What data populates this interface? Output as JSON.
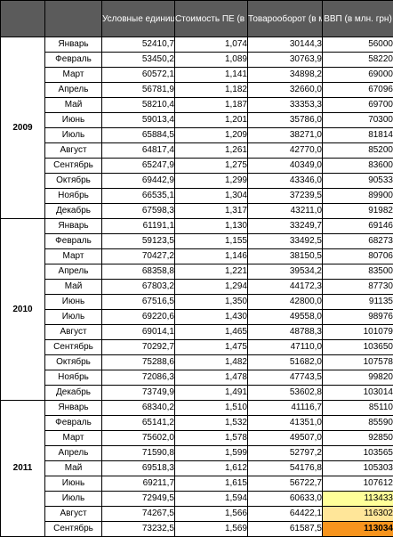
{
  "headers": [
    "",
    "",
    "Условные единицы (ПЕ)",
    "Стоимость ПЕ (в млн. грн)",
    "Товарооборот (в млн. грн)",
    "ВВП (в млн. грн)"
  ],
  "years": [
    {
      "year": "2009",
      "rows": [
        {
          "month": "Январь",
          "units": "52410,7",
          "cost": "1,074",
          "turnover": "30144,3",
          "gdp": "56000"
        },
        {
          "month": "Февраль",
          "units": "53450,2",
          "cost": "1,089",
          "turnover": "30763,9",
          "gdp": "58220"
        },
        {
          "month": "Март",
          "units": "60572,1",
          "cost": "1,141",
          "turnover": "34898,2",
          "gdp": "69000"
        },
        {
          "month": "Апрель",
          "units": "56781,9",
          "cost": "1,182",
          "turnover": "32660,0",
          "gdp": "67096"
        },
        {
          "month": "Май",
          "units": "58210,4",
          "cost": "1,187",
          "turnover": "33353,3",
          "gdp": "69700"
        },
        {
          "month": "Июнь",
          "units": "59013,4",
          "cost": "1,201",
          "turnover": "35786,0",
          "gdp": "70300"
        },
        {
          "month": "Июль",
          "units": "65884,5",
          "cost": "1,209",
          "turnover": "38271,0",
          "gdp": "81814"
        },
        {
          "month": "Август",
          "units": "64817,4",
          "cost": "1,261",
          "turnover": "42770,0",
          "gdp": "85200"
        },
        {
          "month": "Сентябрь",
          "units": "65247,9",
          "cost": "1,275",
          "turnover": "40349,0",
          "gdp": "83600"
        },
        {
          "month": "Октябрь",
          "units": "69442,9",
          "cost": "1,299",
          "turnover": "43346,0",
          "gdp": "90533"
        },
        {
          "month": "Ноябрь",
          "units": "66535,1",
          "cost": "1,304",
          "turnover": "37239,5",
          "gdp": "89900"
        },
        {
          "month": "Декабрь",
          "units": "67598,3",
          "cost": "1,317",
          "turnover": "43211,0",
          "gdp": "91982"
        }
      ]
    },
    {
      "year": "2010",
      "rows": [
        {
          "month": "Январь",
          "units": "61191,1",
          "cost": "1,130",
          "turnover": "33249,7",
          "gdp": "69146"
        },
        {
          "month": "Февраль",
          "units": "59123,5",
          "cost": "1,155",
          "turnover": "33492,5",
          "gdp": "68273"
        },
        {
          "month": "Март",
          "units": "70427,2",
          "cost": "1,146",
          "turnover": "38150,5",
          "gdp": "80706"
        },
        {
          "month": "Апрель",
          "units": "68358,8",
          "cost": "1,221",
          "turnover": "39534,2",
          "gdp": "83500"
        },
        {
          "month": "Май",
          "units": "67803,2",
          "cost": "1,294",
          "turnover": "44172,3",
          "gdp": "87730"
        },
        {
          "month": "Июнь",
          "units": "67516,5",
          "cost": "1,350",
          "turnover": "42800,0",
          "gdp": "91135"
        },
        {
          "month": "Июль",
          "units": "69220,6",
          "cost": "1,430",
          "turnover": "49558,0",
          "gdp": "98976"
        },
        {
          "month": "Август",
          "units": "69014,1",
          "cost": "1,465",
          "turnover": "48788,3",
          "gdp": "101079"
        },
        {
          "month": "Сентябрь",
          "units": "70292,7",
          "cost": "1,475",
          "turnover": "47110,0",
          "gdp": "103650"
        },
        {
          "month": "Октябрь",
          "units": "75288,6",
          "cost": "1,482",
          "turnover": "51682,0",
          "gdp": "107578"
        },
        {
          "month": "Ноябрь",
          "units": "72086,3",
          "cost": "1,478",
          "turnover": "47743,5",
          "gdp": "99820"
        },
        {
          "month": "Декабрь",
          "units": "73749,9",
          "cost": "1,491",
          "turnover": "53602,8",
          "gdp": "103014"
        }
      ]
    },
    {
      "year": "2011",
      "rows": [
        {
          "month": "Январь",
          "units": "68340,2",
          "cost": "1,510",
          "turnover": "41116,7",
          "gdp": "85110"
        },
        {
          "month": "Февраль",
          "units": "65141,2",
          "cost": "1,532",
          "turnover": "41351,0",
          "gdp": "85590"
        },
        {
          "month": "Март",
          "units": "75602,0",
          "cost": "1,578",
          "turnover": "49507,0",
          "gdp": "92850"
        },
        {
          "month": "Апрель",
          "units": "71590,8",
          "cost": "1,599",
          "turnover": "52797,2",
          "gdp": "103565"
        },
        {
          "month": "Май",
          "units": "69518,3",
          "cost": "1,612",
          "turnover": "54176,8",
          "gdp": "105303"
        },
        {
          "month": "Июнь",
          "units": "69211,7",
          "cost": "1,615",
          "turnover": "56722,7",
          "gdp": "107612"
        },
        {
          "month": "Июль",
          "units": "72949,5",
          "cost": "1,594",
          "turnover": "60633,0",
          "gdp": "113433",
          "gdp_color": "#ffff99"
        },
        {
          "month": "Август",
          "units": "74267,5",
          "cost": "1,566",
          "turnover": "64422,1",
          "gdp": "116302",
          "gdp_color": "#ffe699"
        },
        {
          "month": "Сентябрь",
          "units": "73232,5",
          "cost": "1,569",
          "turnover": "61587,5",
          "gdp": "113034",
          "gdp_color": "#f7941d"
        }
      ]
    }
  ]
}
